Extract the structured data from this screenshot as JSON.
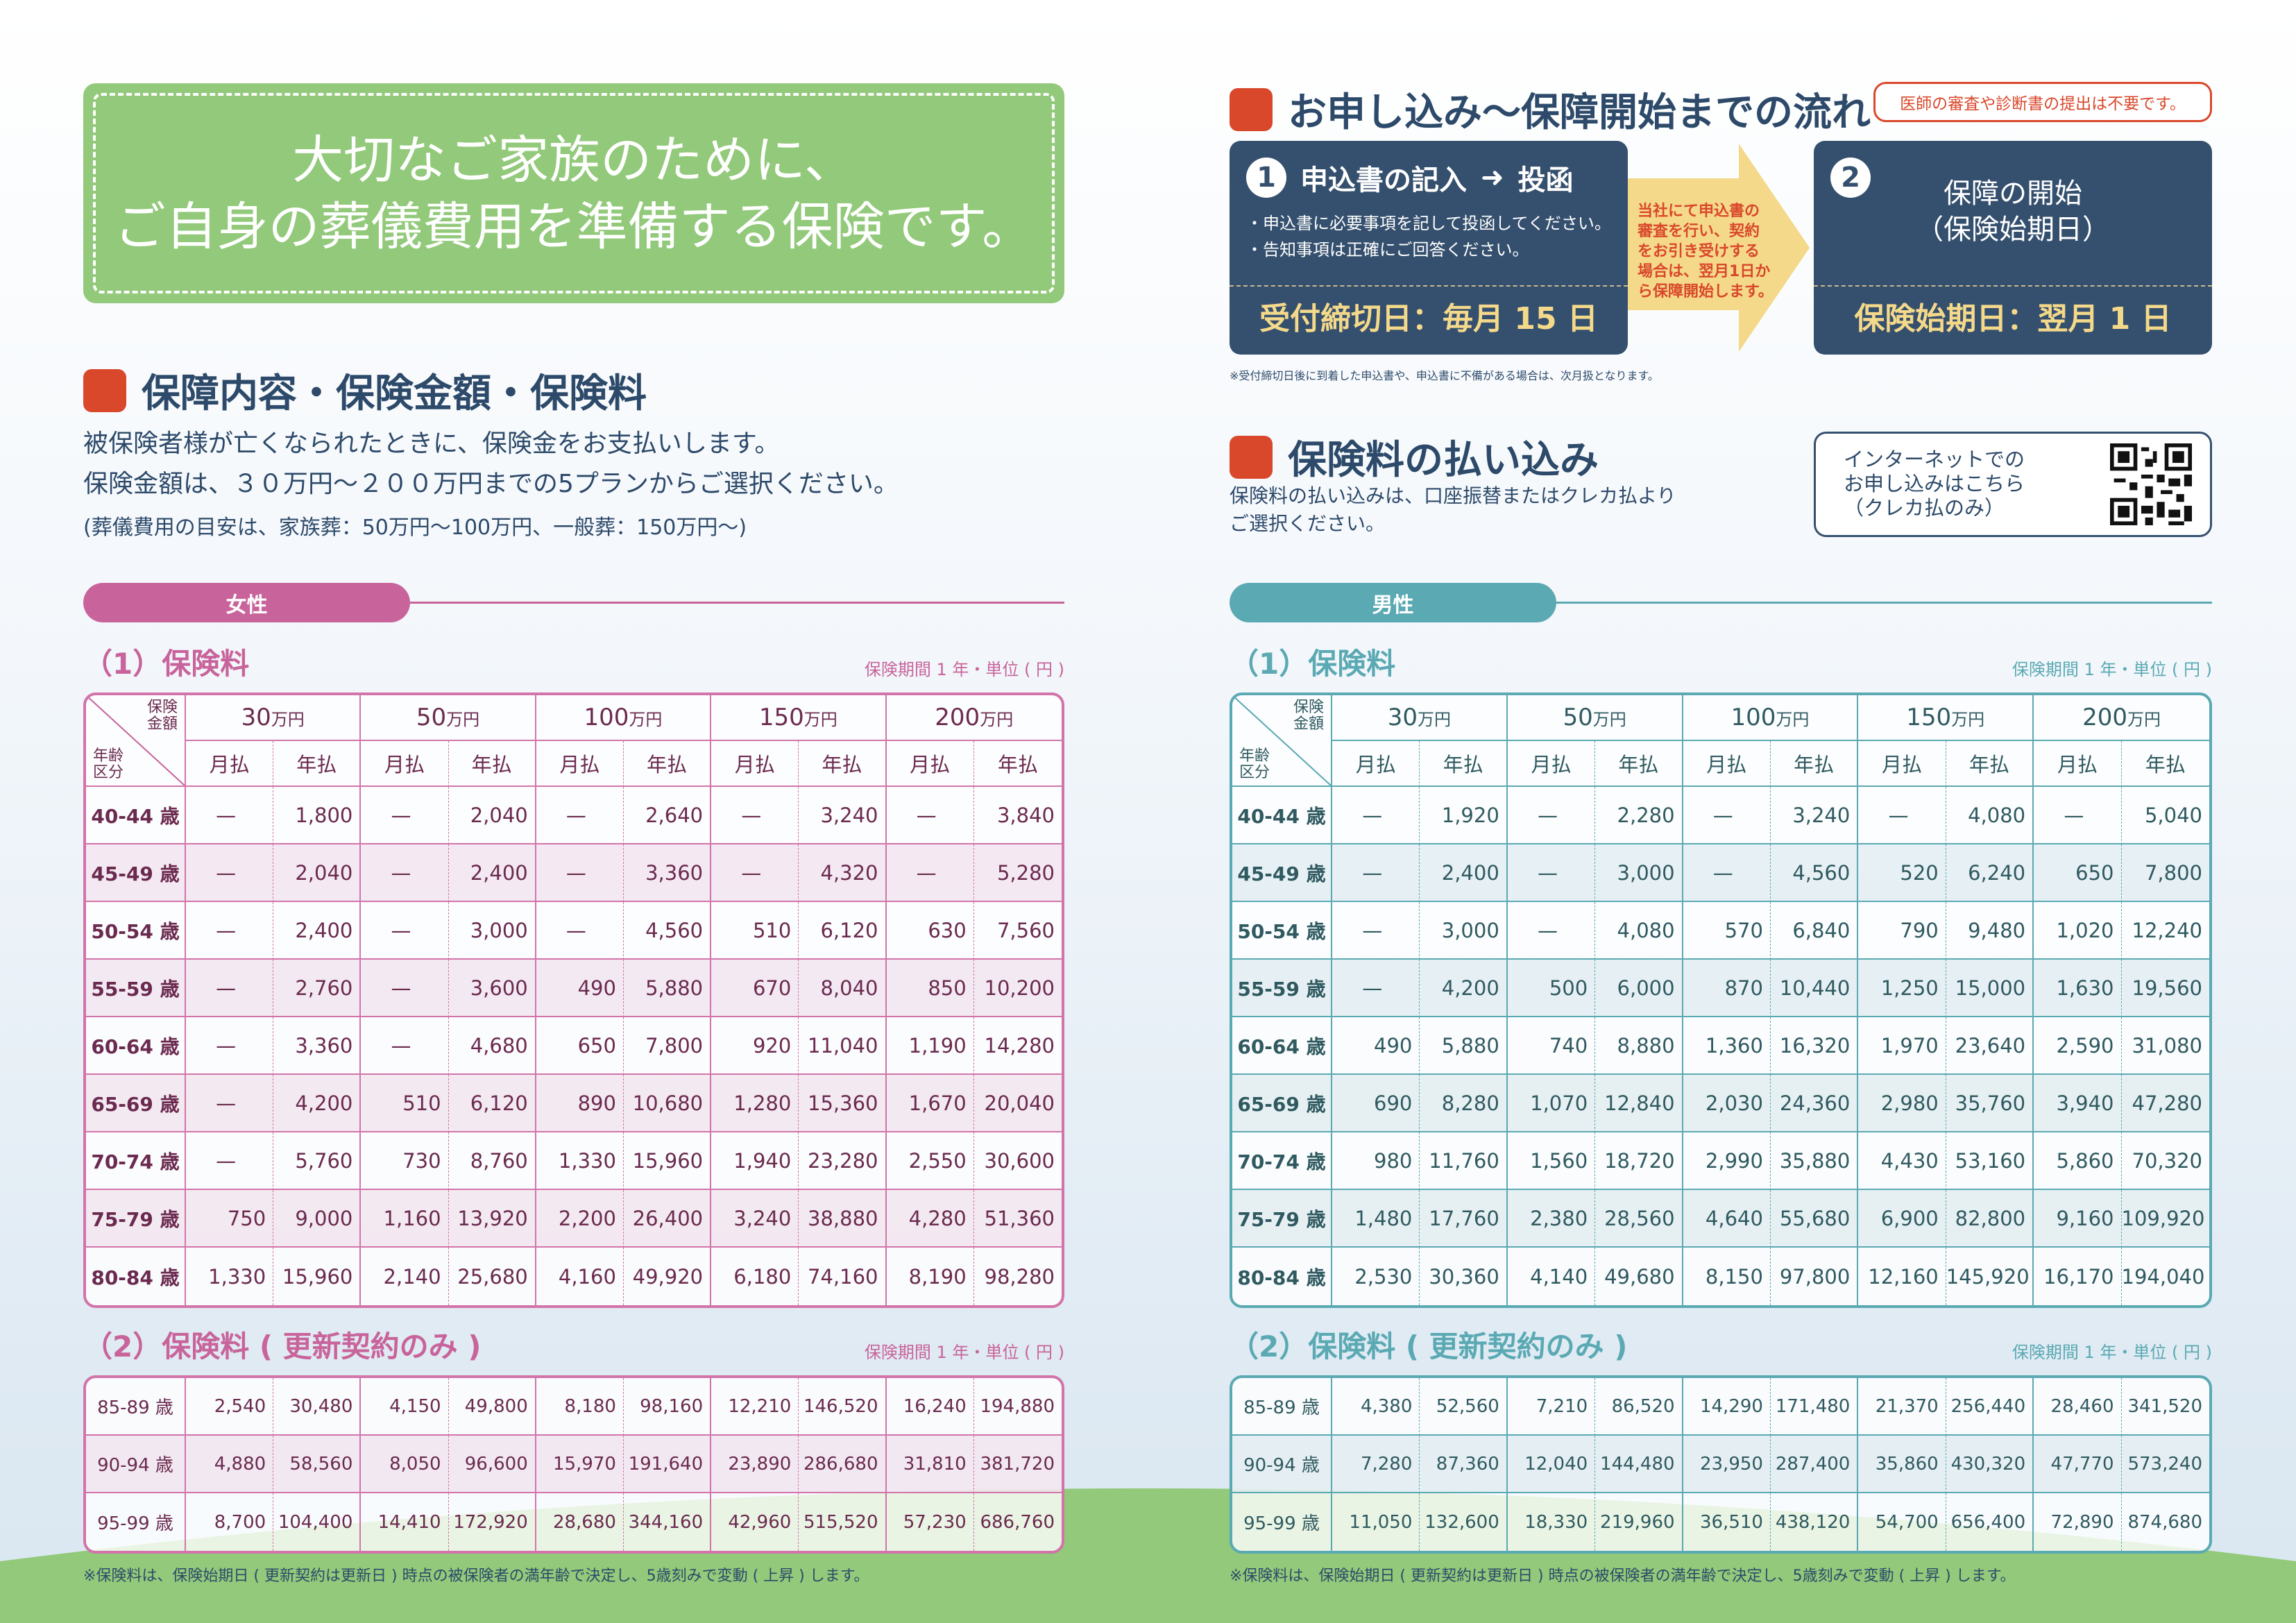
{
  "left": {
    "hero": {
      "line1": "大切なご家族のために、",
      "line2": "ご自身の葬儀費用を準備する保険です。"
    },
    "coverage": {
      "title": "保障内容・保険金額・保険料",
      "text1": "被保険者様が亡くなられたときに、保険金をお支払いします。",
      "text2": "保険金額は、３０万円〜２００万円までの5プランからご選択ください。",
      "text3": "(葬儀費用の目安は、家族葬：50万円〜100万円、一般葬：150万円〜)"
    }
  },
  "right": {
    "flow": {
      "title": "お申し込み〜保障開始までの流れ",
      "badge": "医師の審査や診断書の提出は不要です。",
      "step1": {
        "num": "1",
        "title": "申込書の記入",
        "arrow": "➜",
        "title2": "投函",
        "bullet1": "・申込書に必要事項を記して投函してください。",
        "bullet2": "・告知事項は正確にご回答ください。",
        "deadline": "受付締切日：毎月 15 日"
      },
      "arrow_text": [
        "当社にて申込書の",
        "審査を行い、契約",
        "をお引き受けする",
        "場合は、翌月1日か",
        "ら保障開始します。"
      ],
      "step2": {
        "num": "2",
        "title": "保障の開始",
        "title2": "（保険始期日）",
        "start": "保険始期日：翌月 1 日"
      },
      "note": "※受付締切日後に到着した申込書や、申込書に不備がある場合は、次月扱となります。"
    },
    "payment": {
      "title": "保険料の払い込み",
      "text1": "保険料の払い込みは、口座振替またはクレカ払より",
      "text2": "ご選択ください。",
      "internet1": "インターネットでの",
      "internet2": "お申し込みはこちら",
      "internet3": "（クレカ払のみ）",
      "qr_icon": "qr-code-icon"
    }
  },
  "common": {
    "corner_top": "保険\n金額",
    "corner_bottom": "年齢\n区分",
    "amounts": [
      "30",
      "50",
      "100",
      "150",
      "200"
    ],
    "amount_unit": "万円",
    "monthly": "月払",
    "yearly": "年払",
    "sub1": "（1）保険料",
    "sub2": "（2）保険料 ( 更新契約のみ )",
    "period_note": "保険期間 1 年・単位 ( 円 )",
    "footnote": "※保険料は、保険始期日 ( 更新契約は更新日 ) 時点の被保険者の満年齢で決定し、5歳刻みで変動 ( 上昇 ) します。"
  },
  "female": {
    "label": "女性",
    "color": "#c8649b",
    "table1": [
      [
        "40-44 歳",
        "—",
        "1,800",
        "—",
        "2,040",
        "—",
        "2,640",
        "—",
        "3,240",
        "—",
        "3,840"
      ],
      [
        "45-49 歳",
        "—",
        "2,040",
        "—",
        "2,400",
        "—",
        "3,360",
        "—",
        "4,320",
        "—",
        "5,280"
      ],
      [
        "50-54 歳",
        "—",
        "2,400",
        "—",
        "3,000",
        "—",
        "4,560",
        "510",
        "6,120",
        "630",
        "7,560"
      ],
      [
        "55-59 歳",
        "—",
        "2,760",
        "—",
        "3,600",
        "490",
        "5,880",
        "670",
        "8,040",
        "850",
        "10,200"
      ],
      [
        "60-64 歳",
        "—",
        "3,360",
        "—",
        "4,680",
        "650",
        "7,800",
        "920",
        "11,040",
        "1,190",
        "14,280"
      ],
      [
        "65-69 歳",
        "—",
        "4,200",
        "510",
        "6,120",
        "890",
        "10,680",
        "1,280",
        "15,360",
        "1,670",
        "20,040"
      ],
      [
        "70-74 歳",
        "—",
        "5,760",
        "730",
        "8,760",
        "1,330",
        "15,960",
        "1,940",
        "23,280",
        "2,550",
        "30,600"
      ],
      [
        "75-79 歳",
        "750",
        "9,000",
        "1,160",
        "13,920",
        "2,200",
        "26,400",
        "3,240",
        "38,880",
        "4,280",
        "51,360"
      ],
      [
        "80-84 歳",
        "1,330",
        "15,960",
        "2,140",
        "25,680",
        "4,160",
        "49,920",
        "6,180",
        "74,160",
        "8,190",
        "98,280"
      ]
    ],
    "table2": [
      [
        "85-89 歳",
        "2,540",
        "30,480",
        "4,150",
        "49,800",
        "8,180",
        "98,160",
        "12,210",
        "146,520",
        "16,240",
        "194,880"
      ],
      [
        "90-94 歳",
        "4,880",
        "58,560",
        "8,050",
        "96,600",
        "15,970",
        "191,640",
        "23,890",
        "286,680",
        "31,810",
        "381,720"
      ],
      [
        "95-99 歳",
        "8,700",
        "104,400",
        "14,410",
        "172,920",
        "28,680",
        "344,160",
        "42,960",
        "515,520",
        "57,230",
        "686,760"
      ]
    ]
  },
  "male": {
    "label": "男性",
    "color": "#5aa9b3",
    "table1": [
      [
        "40-44 歳",
        "—",
        "1,920",
        "—",
        "2,280",
        "—",
        "3,240",
        "—",
        "4,080",
        "—",
        "5,040"
      ],
      [
        "45-49 歳",
        "—",
        "2,400",
        "—",
        "3,000",
        "—",
        "4,560",
        "520",
        "6,240",
        "650",
        "7,800"
      ],
      [
        "50-54 歳",
        "—",
        "3,000",
        "—",
        "4,080",
        "570",
        "6,840",
        "790",
        "9,480",
        "1,020",
        "12,240"
      ],
      [
        "55-59 歳",
        "—",
        "4,200",
        "500",
        "6,000",
        "870",
        "10,440",
        "1,250",
        "15,000",
        "1,630",
        "19,560"
      ],
      [
        "60-64 歳",
        "490",
        "5,880",
        "740",
        "8,880",
        "1,360",
        "16,320",
        "1,970",
        "23,640",
        "2,590",
        "31,080"
      ],
      [
        "65-69 歳",
        "690",
        "8,280",
        "1,070",
        "12,840",
        "2,030",
        "24,360",
        "2,980",
        "35,760",
        "3,940",
        "47,280"
      ],
      [
        "70-74 歳",
        "980",
        "11,760",
        "1,560",
        "18,720",
        "2,990",
        "35,880",
        "4,430",
        "53,160",
        "5,860",
        "70,320"
      ],
      [
        "75-79 歳",
        "1,480",
        "17,760",
        "2,380",
        "28,560",
        "4,640",
        "55,680",
        "6,900",
        "82,800",
        "9,160",
        "109,920"
      ],
      [
        "80-84 歳",
        "2,530",
        "30,360",
        "4,140",
        "49,680",
        "8,150",
        "97,800",
        "12,160",
        "145,920",
        "16,170",
        "194,040"
      ]
    ],
    "table2": [
      [
        "85-89 歳",
        "4,380",
        "52,560",
        "7,210",
        "86,520",
        "14,290",
        "171,480",
        "21,370",
        "256,440",
        "28,460",
        "341,520"
      ],
      [
        "90-94 歳",
        "7,280",
        "87,360",
        "12,040",
        "144,480",
        "23,950",
        "287,400",
        "35,860",
        "430,320",
        "47,770",
        "573,240"
      ],
      [
        "95-99 歳",
        "11,050",
        "132,600",
        "18,330",
        "219,960",
        "36,510",
        "438,120",
        "54,700",
        "656,400",
        "72,890",
        "874,680"
      ]
    ]
  }
}
